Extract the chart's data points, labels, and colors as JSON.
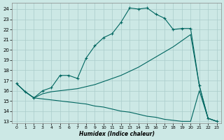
{
  "xlabel": "Humidex (Indice chaleur)",
  "background_color": "#cce8e5",
  "grid_color": "#aaccca",
  "line_color": "#006660",
  "xlim": [
    -0.5,
    23.5
  ],
  "ylim": [
    12.8,
    24.6
  ],
  "yticks": [
    13,
    14,
    15,
    16,
    17,
    18,
    19,
    20,
    21,
    22,
    23,
    24
  ],
  "xticks": [
    0,
    1,
    2,
    3,
    4,
    5,
    6,
    7,
    8,
    9,
    10,
    11,
    12,
    13,
    14,
    15,
    16,
    17,
    18,
    19,
    20,
    21,
    22,
    23
  ],
  "line1_x": [
    0,
    1,
    2,
    3,
    4,
    5,
    6,
    7,
    8,
    9,
    10,
    11,
    12,
    13,
    14,
    15,
    16,
    17,
    18,
    19,
    20,
    21,
    22,
    23
  ],
  "line1_y": [
    16.7,
    15.9,
    15.3,
    16.0,
    16.3,
    17.5,
    17.5,
    17.2,
    19.2,
    20.4,
    21.2,
    21.6,
    22.7,
    24.1,
    24.0,
    24.1,
    23.5,
    23.1,
    22.0,
    22.1,
    22.1,
    16.5,
    13.3,
    13.0
  ],
  "line2_x": [
    0,
    1,
    2,
    3,
    4,
    5,
    6,
    7,
    8,
    9,
    10,
    11,
    12,
    13,
    14,
    15,
    16,
    17,
    18,
    19,
    20,
    21,
    22,
    23
  ],
  "line2_y": [
    16.7,
    15.9,
    15.3,
    15.7,
    15.9,
    16.0,
    16.1,
    16.2,
    16.4,
    16.6,
    16.9,
    17.2,
    17.5,
    17.9,
    18.3,
    18.8,
    19.3,
    19.8,
    20.3,
    20.9,
    21.5,
    16.5,
    13.3,
    13.0
  ],
  "line3_x": [
    0,
    1,
    2,
    3,
    4,
    5,
    6,
    7,
    8,
    9,
    10,
    11,
    12,
    13,
    14,
    15,
    16,
    17,
    18,
    19,
    20,
    21,
    22,
    23
  ],
  "line3_y": [
    16.7,
    15.9,
    15.3,
    15.2,
    15.1,
    15.0,
    14.9,
    14.8,
    14.7,
    14.5,
    14.4,
    14.2,
    14.0,
    13.9,
    13.7,
    13.5,
    13.4,
    13.2,
    13.1,
    13.0,
    13.0,
    16.0,
    13.3,
    13.0
  ]
}
